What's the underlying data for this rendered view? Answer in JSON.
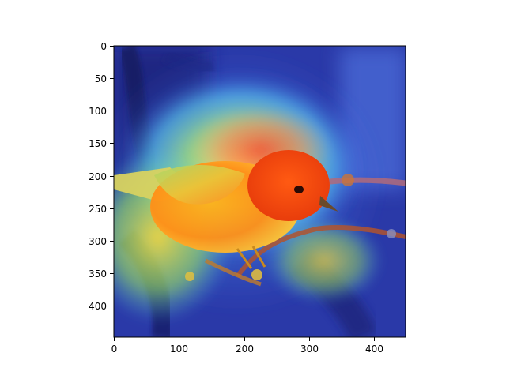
{
  "figure": {
    "type": "image",
    "description_hidden": true,
    "x_ticks": [
      0,
      100,
      200,
      300,
      400
    ],
    "y_ticks": [
      0,
      50,
      100,
      150,
      200,
      250,
      300,
      350,
      400
    ],
    "x_range": [
      0,
      448
    ],
    "y_range": [
      0,
      448
    ],
    "colors": {
      "background": "#ffffff",
      "axis": "#000000",
      "heat_low": "#1e2f9c",
      "heat_mid": "#5fd9ff",
      "heat_high": "#ff3a1a"
    }
  }
}
